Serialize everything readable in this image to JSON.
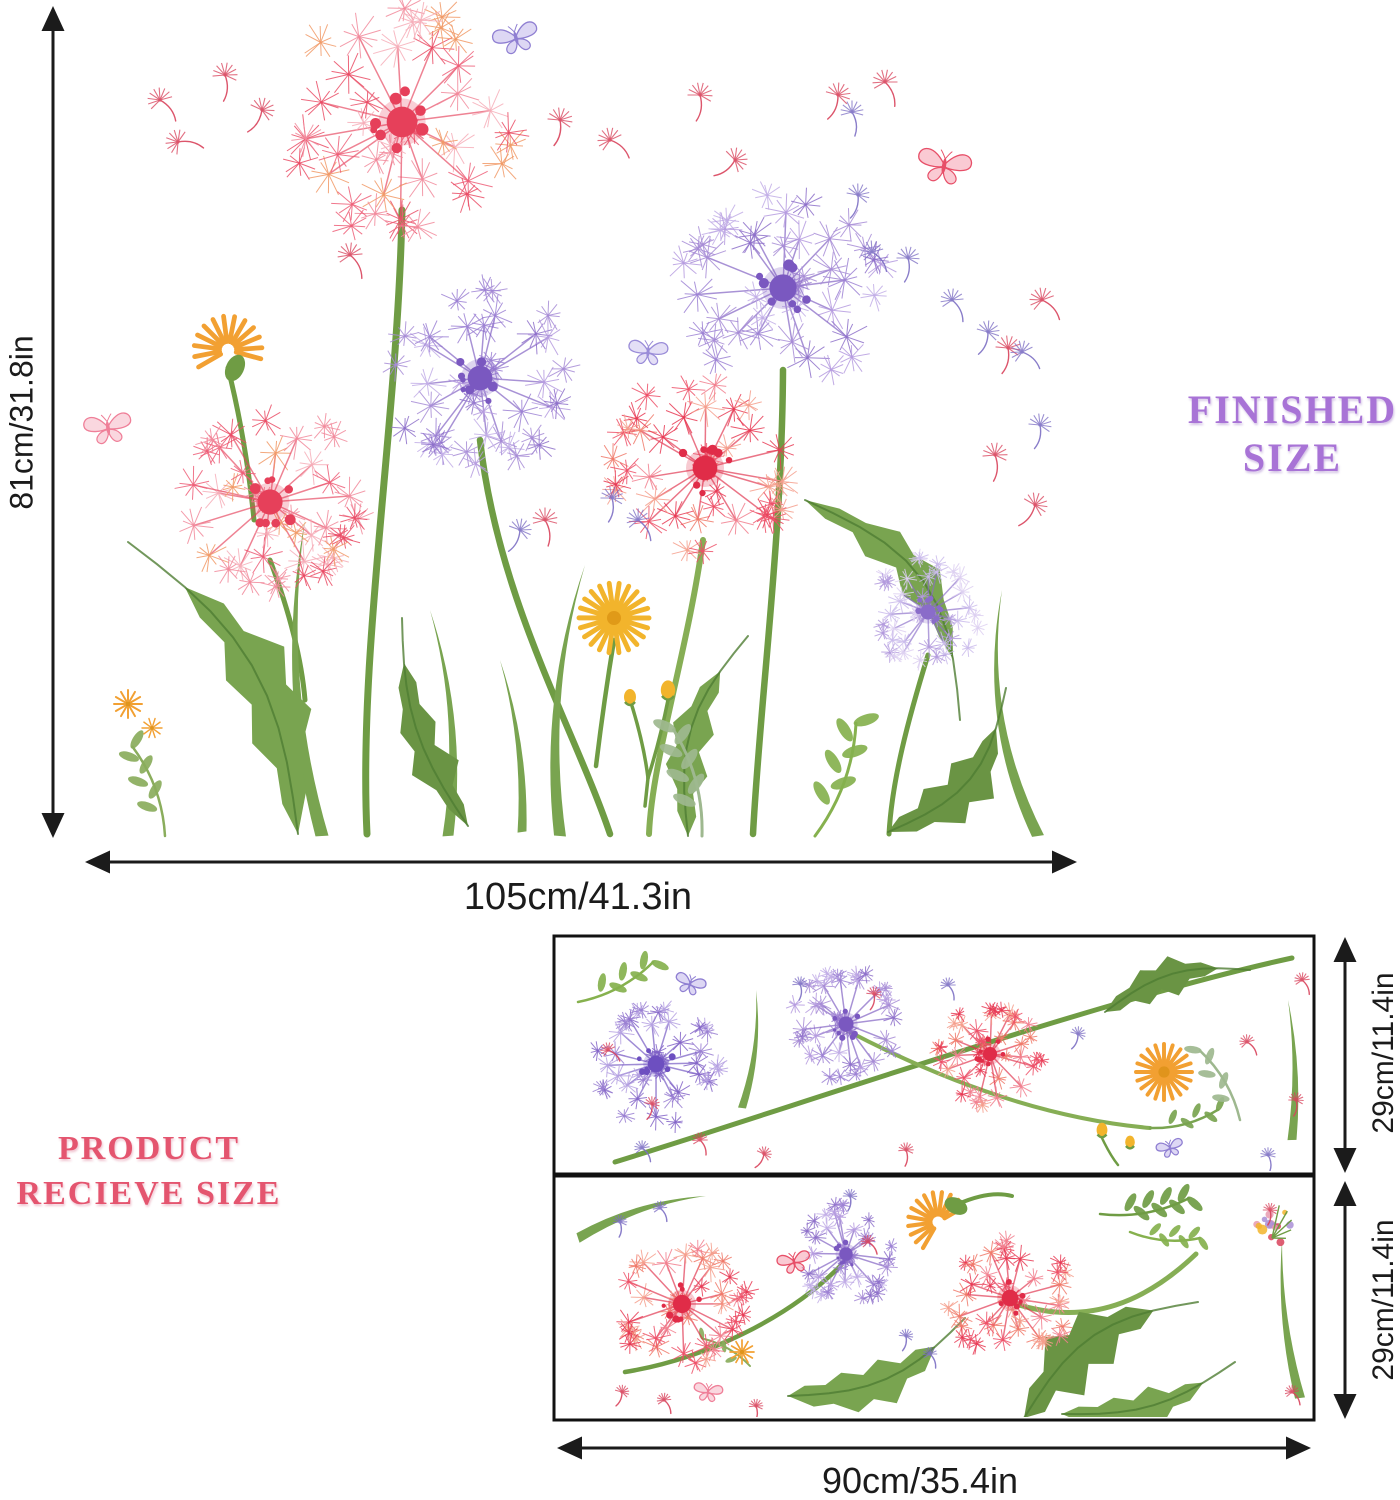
{
  "product": {
    "kind": "dandelion wall decal size diagram"
  },
  "dimension_color": "#1b1b1b",
  "finished_size": {
    "title_line1": "FINISHED",
    "title_line2": "SIZE",
    "title_color": "#a873d6",
    "height_label": "81cm/31.8in",
    "width_label": "105cm/41.3in"
  },
  "receive_size": {
    "title_line1": "PRODUCT",
    "title_line2": "RECIEVE SIZE",
    "title_color": "#e4556f",
    "sheet1_height_label": "29cm/11.4in",
    "sheet2_height_label": "29cm/11.4in",
    "width_label": "90cm/35.4in"
  },
  "artwork": {
    "elements": [
      "pink-dandelion",
      "red-dandelion",
      "purple-dandelion",
      "lavender-dandelion",
      "orange-flower",
      "yellow-daisy",
      "yellow-buds",
      "dandelion-leaves",
      "grass-blades",
      "leaf-sprigs",
      "butterflies",
      "flying-seeds",
      "sticker-sheet-1",
      "sticker-sheet-2"
    ]
  },
  "palette": {
    "pink_tufts": [
      "#f28a9c",
      "#ee5f78",
      "#f6aeb9",
      "#f19a67",
      "#ea4d66"
    ],
    "pink_core": "#e6405a",
    "red_tufts": [
      "#ee5068",
      "#f2808f",
      "#e83b55",
      "#f59f8d",
      "#f07a6a"
    ],
    "red_core": "#e02c48",
    "purple_tufts": [
      "#a78cd6",
      "#8e70ca",
      "#c2aee7",
      "#b69ce0",
      "#9d82d4"
    ],
    "purple_core": "#7a58c0",
    "lavender_tufts": [
      "#cbbcec",
      "#b29add",
      "#ddd0f1"
    ],
    "lavender_core": "#8a6cc9",
    "deep_purple_tufts": [
      "#9a7fd2",
      "#8465c8",
      "#b6a2e2"
    ],
    "deep_purple_core": "#6d4fc0",
    "stem": "#6f9c44",
    "stem_light": "#86ae55",
    "leaf": "#79a450",
    "leaf_dark": "#4f7d33",
    "leaf_muted": "#9eb88f",
    "orange": "#f2a032",
    "yellow": "#f2b42c",
    "yellow_deep": "#e0941c",
    "butterfly_pink": "#f4a6b8",
    "butterfly_pink_edge": "#ef7f98",
    "butterfly_red": "#f5899d",
    "butterfly_red_edge": "#e74f68",
    "butterfly_purple": "#b3a6e6",
    "butterfly_purple_edge": "#8f7fd2",
    "seed_red": "#d9435c",
    "seed_purple": "#7d6fc4"
  }
}
